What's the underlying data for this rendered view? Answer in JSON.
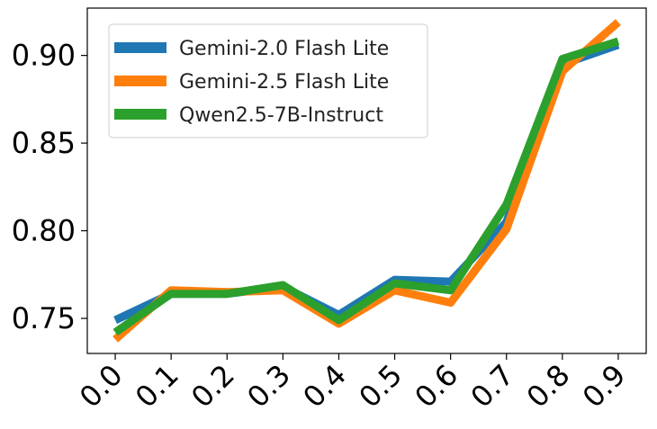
{
  "chart_data": {
    "type": "line",
    "title": "",
    "xlabel": "",
    "ylabel": "",
    "x": [
      "0.0",
      "0.1",
      "0.2",
      "0.3",
      "0.4",
      "0.5",
      "0.6",
      "0.7",
      "0.8",
      "0.9"
    ],
    "xlim": [
      -0.5,
      9.5
    ],
    "ylim": [
      0.73,
      0.927
    ],
    "yticks": [
      "0.75",
      "0.80",
      "0.85",
      "0.90"
    ],
    "ytick_values": [
      0.75,
      0.8,
      0.85,
      0.9
    ],
    "grid": false,
    "legend_position": "top-left",
    "series": [
      {
        "name": "Gemini-2.0 Flash Lite",
        "color": "#1f77b4",
        "values": [
          0.749,
          0.764,
          0.764,
          0.768,
          0.752,
          0.772,
          0.771,
          0.805,
          0.895,
          0.906
        ]
      },
      {
        "name": "Gemini-2.5 Flash Lite",
        "color": "#ff7f0e",
        "values": [
          0.738,
          0.766,
          0.765,
          0.766,
          0.747,
          0.766,
          0.759,
          0.801,
          0.891,
          0.919
        ]
      },
      {
        "name": "Qwen2.5-7B-Instruct",
        "color": "#2ca02c",
        "values": [
          0.742,
          0.764,
          0.764,
          0.769,
          0.749,
          0.77,
          0.766,
          0.815,
          0.898,
          0.908
        ]
      }
    ]
  }
}
